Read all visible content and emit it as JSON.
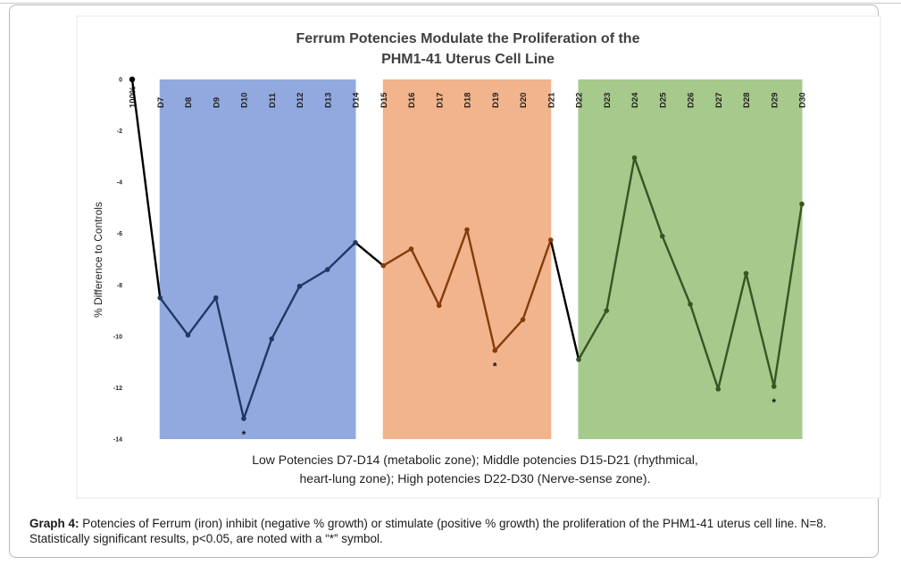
{
  "caption": {
    "label": "Graph 4:",
    "text": "Potencies of Ferrum (iron) inhibit (negative % growth) or stimulate (positive % growth) the proliferation of the PHM1-41 uterus cell line. N=8. Statistically significant results, p<0.05, are noted with a “*” symbol."
  },
  "colors": {
    "low_zone": "#91a9de",
    "middle_zone": "#f1b48c",
    "high_zone": "#a6c98c",
    "low_line": "#1f3864",
    "middle_line": "#843c0c",
    "high_line": "#375623",
    "connector_line": "#000000"
  },
  "chart_data": {
    "type": "line",
    "title_lines": [
      "Ferrum Potencies Modulate the Proliferation of the",
      "PHM1-41 Uterus Cell Line"
    ],
    "xlabel": "",
    "ylabel": "% Difference to Controls",
    "ylim": [
      -14,
      0
    ],
    "yticks": [
      0,
      -2,
      -4,
      -6,
      -8,
      -10,
      -12,
      -14
    ],
    "grid": false,
    "legend": "none",
    "categories": [
      "100%",
      "D7",
      "D8",
      "D9",
      "D10",
      "D11",
      "D12",
      "D13",
      "D14",
      "D15",
      "D16",
      "D17",
      "D18",
      "D19",
      "D20",
      "D21",
      "D22",
      "D23",
      "D24",
      "D25",
      "D26",
      "D27",
      "D28",
      "D29",
      "D30"
    ],
    "values": [
      0,
      -8.5,
      -9.95,
      -8.5,
      -13.2,
      -10.1,
      -8.05,
      -7.4,
      -6.35,
      -7.25,
      -6.6,
      -8.8,
      -5.85,
      -10.55,
      -9.35,
      -6.25,
      -10.9,
      -9.0,
      -3.05,
      -6.1,
      -8.75,
      -12.05,
      -7.55,
      -11.95,
      -4.85
    ],
    "zones": [
      {
        "name": "low",
        "from": "D7",
        "to": "D14",
        "categories": [
          "D7",
          "D8",
          "D9",
          "D10",
          "D11",
          "D12",
          "D13",
          "D14"
        ]
      },
      {
        "name": "middle",
        "from": "D15",
        "to": "D21",
        "categories": [
          "D15",
          "D16",
          "D17",
          "D18",
          "D19",
          "D20",
          "D21"
        ]
      },
      {
        "name": "high",
        "from": "D22",
        "to": "D30",
        "categories": [
          "D22",
          "D23",
          "D24",
          "D25",
          "D26",
          "D27",
          "D28",
          "D29",
          "D30"
        ]
      }
    ],
    "significant": [
      "D10",
      "D19",
      "D29"
    ],
    "significance_symbol": "*",
    "annotation_lines": [
      "Low Potencies D7-D14 (metabolic zone); Middle potencies D15-D21 (rhythmical,",
      "heart-lung zone); High potencies D22-D30 (Nerve-sense zone)."
    ]
  }
}
